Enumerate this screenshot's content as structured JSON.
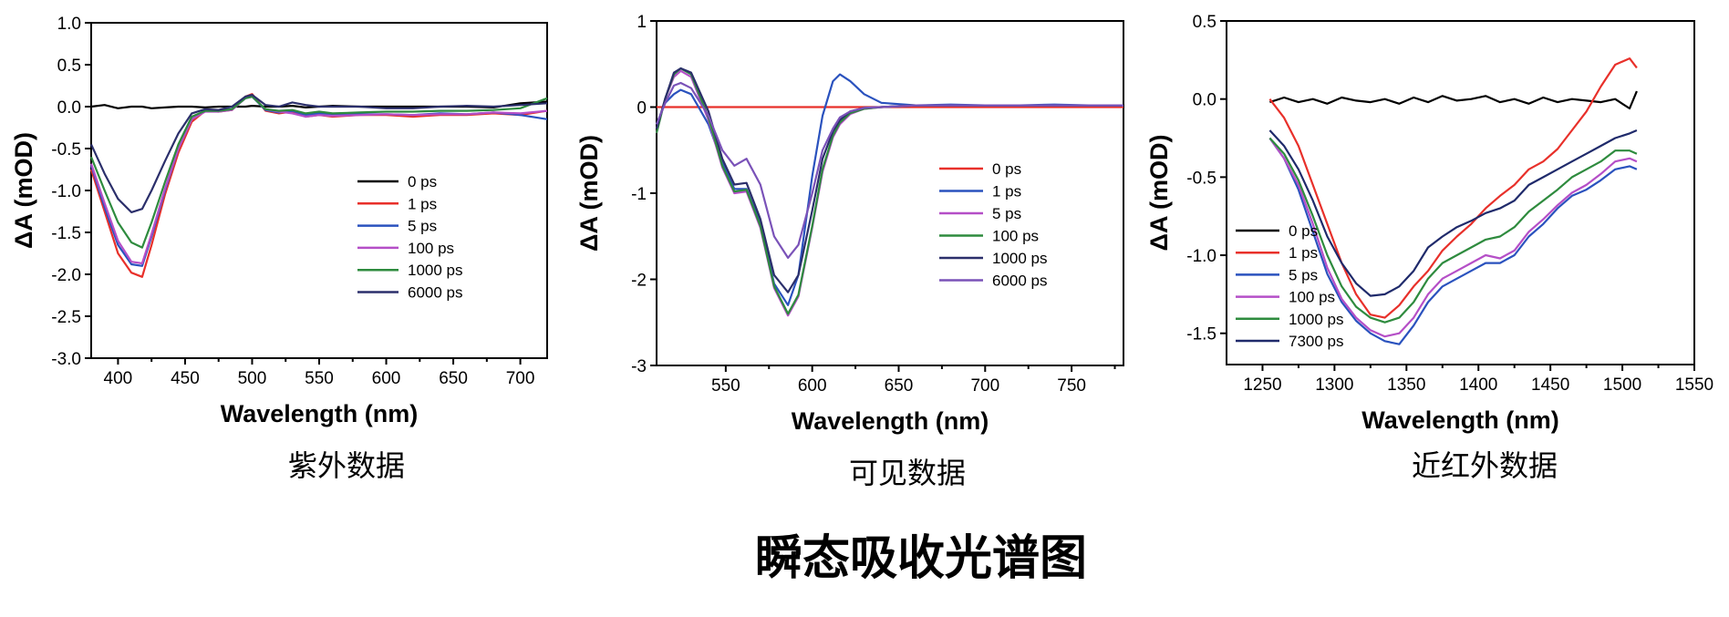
{
  "figure_title": "瞬态吸收光谱图",
  "chart_data": [
    {
      "type": "line",
      "caption": "紫外数据",
      "xlabel": "Wavelength (nm)",
      "ylabel": "ΔA (mOD)",
      "xlim": [
        380,
        720
      ],
      "ylim": [
        -3.0,
        1.0
      ],
      "xticks": [
        400,
        450,
        500,
        550,
        600,
        650,
        700
      ],
      "xtick_labels": [
        "400",
        "450",
        "500",
        "550",
        "600",
        "650",
        "700"
      ],
      "yticks": [
        1.0,
        0.5,
        0.0,
        -0.5,
        -1.0,
        -1.5,
        -2.0,
        -2.5,
        -3.0
      ],
      "ytick_labels": [
        "1.0",
        "0.5",
        "0.0",
        "-0.5",
        "-1.0",
        "-1.5",
        "-2.0",
        "-2.5",
        "-3.0"
      ],
      "legend_position": "center-right",
      "x": [
        380,
        390,
        400,
        410,
        418,
        425,
        435,
        445,
        455,
        465,
        475,
        485,
        495,
        500,
        510,
        520,
        530,
        540,
        550,
        560,
        580,
        600,
        620,
        640,
        660,
        680,
        700,
        720
      ],
      "series": [
        {
          "name": "0 ps",
          "color": "#000000",
          "values": [
            0.0,
            0.02,
            -0.02,
            0.0,
            0.0,
            -0.02,
            -0.01,
            0.0,
            0.0,
            -0.01,
            0.0,
            0.0,
            0.0,
            0.01,
            0.0,
            0.0,
            0.01,
            -0.01,
            0.0,
            0.01,
            0.0,
            0.0,
            0.0,
            0.0,
            0.0,
            -0.01,
            0.04,
            0.06
          ]
        },
        {
          "name": "1 ps",
          "color": "#e8302a",
          "values": [
            -0.75,
            -1.25,
            -1.75,
            -1.98,
            -2.03,
            -1.65,
            -1.05,
            -0.55,
            -0.18,
            -0.05,
            -0.06,
            -0.04,
            0.12,
            0.15,
            -0.05,
            -0.08,
            -0.06,
            -0.12,
            -0.1,
            -0.12,
            -0.1,
            -0.1,
            -0.12,
            -0.1,
            -0.1,
            -0.08,
            -0.1,
            -0.05
          ]
        },
        {
          "name": "5 ps",
          "color": "#2a52be",
          "values": [
            -0.7,
            -1.2,
            -1.65,
            -1.88,
            -1.9,
            -1.55,
            -1.0,
            -0.5,
            -0.15,
            -0.05,
            -0.05,
            -0.03,
            0.1,
            0.12,
            -0.04,
            -0.07,
            -0.05,
            -0.1,
            -0.08,
            -0.1,
            -0.09,
            -0.09,
            -0.1,
            -0.08,
            -0.09,
            -0.07,
            -0.1,
            -0.15
          ]
        },
        {
          "name": "100 ps",
          "color": "#b54fc7",
          "values": [
            -0.68,
            -1.15,
            -1.6,
            -1.85,
            -1.87,
            -1.52,
            -0.98,
            -0.5,
            -0.15,
            -0.06,
            -0.06,
            -0.04,
            0.1,
            0.12,
            -0.03,
            -0.06,
            -0.08,
            -0.12,
            -0.1,
            -0.11,
            -0.1,
            -0.09,
            -0.1,
            -0.09,
            -0.09,
            -0.07,
            -0.08,
            -0.05
          ]
        },
        {
          "name": "1000 ps",
          "color": "#2e8b3e",
          "values": [
            -0.6,
            -1.0,
            -1.38,
            -1.62,
            -1.68,
            -1.38,
            -0.9,
            -0.45,
            -0.12,
            -0.05,
            -0.05,
            -0.03,
            0.1,
            0.12,
            -0.03,
            -0.05,
            -0.04,
            -0.08,
            -0.06,
            -0.08,
            -0.07,
            -0.06,
            -0.06,
            -0.05,
            -0.05,
            -0.04,
            -0.02,
            0.1
          ]
        },
        {
          "name": "6000 ps",
          "color": "#2b2f6b",
          "values": [
            -0.45,
            -0.8,
            -1.1,
            -1.26,
            -1.22,
            -1.0,
            -0.65,
            -0.32,
            -0.08,
            -0.03,
            -0.04,
            0.0,
            0.12,
            0.14,
            0.02,
            0.0,
            0.05,
            0.02,
            0.0,
            0.0,
            0.0,
            -0.02,
            -0.02,
            0.0,
            0.01,
            0.0,
            0.02,
            0.04
          ]
        }
      ]
    },
    {
      "type": "line",
      "caption": "可见数据",
      "xlabel": "Wavelength (nm)",
      "ylabel": "ΔA (mOD)",
      "xlim": [
        510,
        780
      ],
      "ylim": [
        -3,
        1
      ],
      "xticks": [
        550,
        600,
        650,
        700,
        750
      ],
      "xtick_labels": [
        "550",
        "600",
        "650",
        "700",
        "750"
      ],
      "yticks": [
        1,
        0,
        -1,
        -2,
        -3
      ],
      "ytick_labels": [
        "1",
        "0",
        "-1",
        "-2",
        "-3"
      ],
      "legend_position": "center-right",
      "x": [
        510,
        515,
        520,
        524,
        530,
        540,
        548,
        555,
        562,
        570,
        578,
        586,
        592,
        600,
        606,
        612,
        616,
        622,
        630,
        640,
        660,
        680,
        700,
        720,
        740,
        760,
        780
      ],
      "series": [
        {
          "name": "0 ps",
          "color": "#e8302a",
          "values": [
            0.0,
            0.0,
            0.0,
            0.0,
            0.0,
            0.0,
            0.0,
            0.0,
            0.0,
            0.0,
            0.0,
            0.0,
            0.0,
            0.0,
            0.0,
            0.0,
            0.0,
            0.0,
            0.0,
            0.0,
            0.0,
            0.0,
            0.0,
            0.0,
            0.0,
            0.0,
            0.0
          ]
        },
        {
          "name": "1 ps",
          "color": "#2a52be",
          "values": [
            -0.2,
            0.05,
            0.15,
            0.2,
            0.15,
            -0.2,
            -0.65,
            -0.95,
            -0.95,
            -1.35,
            -2.05,
            -2.3,
            -1.95,
            -0.8,
            -0.1,
            0.3,
            0.38,
            0.3,
            0.15,
            0.05,
            0.02,
            0.03,
            0.02,
            0.02,
            0.03,
            0.02,
            0.02
          ]
        },
        {
          "name": "5 ps",
          "color": "#b54fc7",
          "values": [
            -0.3,
            0.1,
            0.35,
            0.42,
            0.35,
            -0.15,
            -0.7,
            -1.0,
            -0.98,
            -1.4,
            -2.1,
            -2.42,
            -2.2,
            -1.4,
            -0.75,
            -0.35,
            -0.2,
            -0.08,
            -0.02,
            0.0,
            0.02,
            0.02,
            0.02,
            0.02,
            0.02,
            0.02,
            0.02
          ]
        },
        {
          "name": "100 ps",
          "color": "#2e8b3e",
          "values": [
            -0.3,
            0.1,
            0.38,
            0.45,
            0.38,
            -0.12,
            -0.68,
            -0.98,
            -0.96,
            -1.38,
            -2.08,
            -2.4,
            -2.18,
            -1.38,
            -0.72,
            -0.33,
            -0.18,
            -0.07,
            -0.02,
            0.0,
            0.02,
            0.02,
            0.02,
            0.02,
            0.02,
            0.02,
            0.02
          ]
        },
        {
          "name": "1000 ps",
          "color": "#2b2f6b",
          "values": [
            -0.25,
            0.1,
            0.4,
            0.45,
            0.4,
            -0.05,
            -0.6,
            -0.9,
            -0.88,
            -1.3,
            -1.95,
            -2.15,
            -1.95,
            -1.2,
            -0.6,
            -0.28,
            -0.15,
            -0.05,
            -0.01,
            0.0,
            0.02,
            0.02,
            0.02,
            0.02,
            0.02,
            0.02,
            0.02
          ]
        },
        {
          "name": "6000 ps",
          "color": "#7a52b8",
          "values": [
            -0.2,
            0.05,
            0.25,
            0.28,
            0.22,
            -0.1,
            -0.5,
            -0.68,
            -0.6,
            -0.9,
            -1.5,
            -1.75,
            -1.6,
            -1.0,
            -0.5,
            -0.25,
            -0.12,
            -0.05,
            -0.01,
            0.0,
            0.02,
            0.02,
            0.02,
            0.02,
            0.02,
            0.02,
            0.02
          ]
        }
      ]
    },
    {
      "type": "line",
      "caption": "近红外数据",
      "xlabel": "Wavelength (nm)",
      "ylabel": "ΔA (mOD)",
      "xlim": [
        1225,
        1550
      ],
      "ylim": [
        -1.7,
        0.5
      ],
      "xticks": [
        1250,
        1300,
        1350,
        1400,
        1450,
        1500,
        1550
      ],
      "xtick_labels": [
        "1250",
        "1300",
        "1350",
        "1400",
        "1450",
        "1500",
        "1550"
      ],
      "yticks": [
        0.5,
        0.0,
        -0.5,
        -1.0,
        -1.5
      ],
      "ytick_labels": [
        "0.5",
        "0.0",
        "-0.5",
        "-1.0",
        "-1.5"
      ],
      "legend_position": "bottom-left",
      "x": [
        1255,
        1265,
        1275,
        1285,
        1295,
        1305,
        1315,
        1325,
        1335,
        1345,
        1355,
        1365,
        1375,
        1385,
        1395,
        1405,
        1415,
        1425,
        1435,
        1445,
        1455,
        1465,
        1475,
        1485,
        1495,
        1505,
        1510
      ],
      "series": [
        {
          "name": "0 ps",
          "color": "#000000",
          "values": [
            -0.02,
            0.01,
            -0.02,
            0.0,
            -0.03,
            0.01,
            -0.01,
            -0.02,
            0.0,
            -0.03,
            0.01,
            -0.02,
            0.02,
            -0.01,
            0.0,
            0.02,
            -0.02,
            0.0,
            -0.03,
            0.01,
            -0.02,
            0.0,
            -0.01,
            -0.02,
            0.0,
            -0.06,
            0.05
          ]
        },
        {
          "name": "1 ps",
          "color": "#e8302a",
          "values": [
            0.0,
            -0.12,
            -0.3,
            -0.55,
            -0.8,
            -1.05,
            -1.25,
            -1.38,
            -1.4,
            -1.32,
            -1.2,
            -1.1,
            -0.97,
            -0.88,
            -0.8,
            -0.7,
            -0.62,
            -0.55,
            -0.45,
            -0.4,
            -0.32,
            -0.2,
            -0.08,
            0.08,
            0.22,
            0.26,
            0.2
          ]
        },
        {
          "name": "5 ps",
          "color": "#2a52be",
          "values": [
            -0.25,
            -0.38,
            -0.58,
            -0.85,
            -1.12,
            -1.3,
            -1.42,
            -1.5,
            -1.55,
            -1.57,
            -1.45,
            -1.3,
            -1.2,
            -1.15,
            -1.1,
            -1.05,
            -1.05,
            -1.0,
            -0.88,
            -0.8,
            -0.7,
            -0.62,
            -0.58,
            -0.52,
            -0.45,
            -0.43,
            -0.45
          ]
        },
        {
          "name": "100 ps",
          "color": "#b54fc7",
          "values": [
            -0.25,
            -0.38,
            -0.55,
            -0.8,
            -1.08,
            -1.28,
            -1.4,
            -1.48,
            -1.52,
            -1.5,
            -1.4,
            -1.25,
            -1.15,
            -1.1,
            -1.05,
            -1.0,
            -1.02,
            -0.97,
            -0.85,
            -0.77,
            -0.68,
            -0.6,
            -0.55,
            -0.48,
            -0.4,
            -0.38,
            -0.4
          ]
        },
        {
          "name": "1000 ps",
          "color": "#2e8b3e",
          "values": [
            -0.25,
            -0.35,
            -0.52,
            -0.75,
            -1.0,
            -1.2,
            -1.33,
            -1.4,
            -1.43,
            -1.4,
            -1.3,
            -1.15,
            -1.05,
            -1.0,
            -0.95,
            -0.9,
            -0.88,
            -0.82,
            -0.72,
            -0.65,
            -0.58,
            -0.5,
            -0.45,
            -0.4,
            -0.33,
            -0.33,
            -0.35
          ]
        },
        {
          "name": "7300 ps",
          "color": "#1f2a6b",
          "values": [
            -0.2,
            -0.3,
            -0.45,
            -0.65,
            -0.88,
            -1.05,
            -1.18,
            -1.26,
            -1.25,
            -1.2,
            -1.1,
            -0.95,
            -0.88,
            -0.82,
            -0.78,
            -0.73,
            -0.7,
            -0.65,
            -0.55,
            -0.5,
            -0.45,
            -0.4,
            -0.35,
            -0.3,
            -0.25,
            -0.22,
            -0.2
          ]
        }
      ]
    }
  ]
}
